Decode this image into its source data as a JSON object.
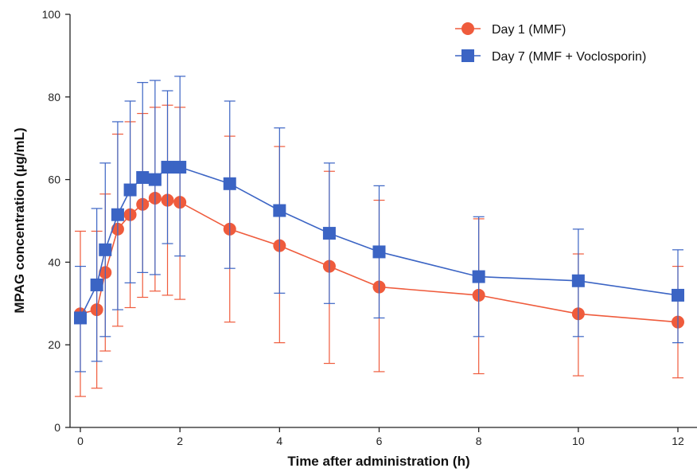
{
  "chart_data": {
    "type": "line",
    "title": "",
    "xlabel": "Time after administration (h)",
    "ylabel": "MPAG concentration (µg/mL)",
    "xlim": [
      0,
      12
    ],
    "ylim": [
      0,
      100
    ],
    "xticks": [
      0,
      2,
      4,
      6,
      8,
      10,
      12
    ],
    "yticks": [
      0,
      20,
      40,
      60,
      80,
      100
    ],
    "grid": false,
    "legend_position": "top-right",
    "series": [
      {
        "name": "Day 1 (MMF)",
        "color": "#ef5b3c",
        "marker": "circle",
        "x": [
          0,
          0.33,
          0.5,
          0.75,
          1,
          1.25,
          1.5,
          1.75,
          2,
          3,
          4,
          5,
          6,
          8,
          10,
          12
        ],
        "y": [
          27.5,
          28.5,
          37.5,
          48,
          51.5,
          54,
          55.5,
          55,
          54.5,
          48,
          44,
          39,
          34,
          32,
          27.5,
          25.5
        ],
        "err_low": [
          7.5,
          9.5,
          18.5,
          24.5,
          29,
          31.5,
          33,
          32,
          31,
          25.5,
          20.5,
          15.5,
          13.5,
          13,
          12.5,
          12
        ],
        "err_high": [
          47.5,
          47.5,
          56.5,
          71,
          74,
          76,
          77.5,
          78,
          77.5,
          70.5,
          68,
          62,
          55,
          50.5,
          42,
          39
        ]
      },
      {
        "name": "Day 7 (MMF + Voclosporin)",
        "color": "#3b64c4",
        "marker": "square",
        "x": [
          0,
          0.33,
          0.5,
          0.75,
          1,
          1.25,
          1.5,
          1.75,
          2,
          3,
          4,
          5,
          6,
          8,
          10,
          12
        ],
        "y": [
          26.5,
          34.5,
          43,
          51.5,
          57.5,
          60.5,
          60,
          63,
          63,
          59,
          52.5,
          47,
          42.5,
          36.5,
          35.5,
          32
        ],
        "err_low": [
          13.5,
          16,
          22,
          28.5,
          35,
          37.5,
          37,
          44.5,
          41.5,
          38.5,
          32.5,
          30,
          26.5,
          22,
          22,
          20.5
        ],
        "err_high": [
          39,
          53,
          64,
          74,
          79,
          83.5,
          84,
          81.5,
          85,
          79,
          72.5,
          64,
          58.5,
          51,
          48,
          43
        ]
      }
    ]
  }
}
